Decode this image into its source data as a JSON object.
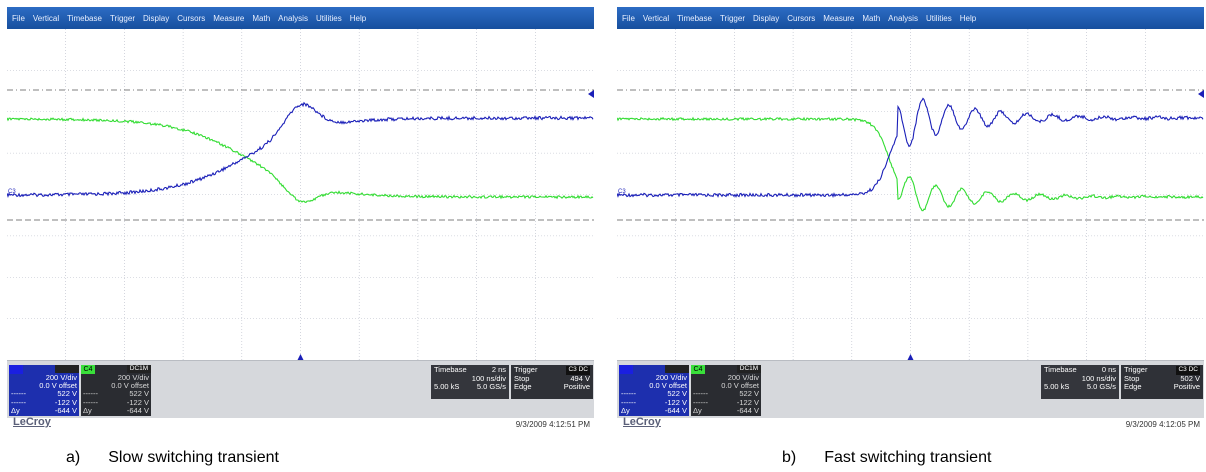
{
  "menu": [
    "File",
    "Vertical",
    "Timebase",
    "Trigger",
    "Display",
    "Cursors",
    "Measure",
    "Math",
    "Analysis",
    "Utilities",
    "Help"
  ],
  "colors": {
    "c3_trace": "#1a1fb8",
    "c4_trace": "#32dc32"
  },
  "panels": [
    {
      "id": "slow",
      "channels": {
        "c3": {
          "id": "",
          "coupling": "",
          "vdiv": "200 V/div",
          "offset": "0.0 V offset",
          "r1": "522 V",
          "r2": "-122 V",
          "dy_label": "Δy",
          "dy": "-644 V"
        },
        "c4": {
          "id": "C4",
          "coupling": "DC1M",
          "vdiv": "200 V/div",
          "offset": "0.0 V offset",
          "r1": "522 V",
          "r2": "-122 V",
          "dy_label": "Δy",
          "dy": "-644 V"
        }
      },
      "timebase": {
        "label": "Timebase",
        "delay": "2 ns",
        "div": "100 ns/div",
        "samples": "5.00 kS",
        "rate": "5.0 GS/s"
      },
      "trigger": {
        "label": "Trigger",
        "tag": "C3 DC",
        "mode": "Stop",
        "level": "494 V",
        "type": "Edge",
        "slope": "Positive"
      },
      "brand": "LeCroy",
      "timestamp": "9/3/2009 4:12:51 PM",
      "caption_label": "a)",
      "caption_text": "Slow switching transient",
      "ground_marker": "C3"
    },
    {
      "id": "fast",
      "channels": {
        "c3": {
          "id": "",
          "coupling": "",
          "vdiv": "200 V/div",
          "offset": "0.0 V offset",
          "r1": "522 V",
          "r2": "-122 V",
          "dy_label": "Δy",
          "dy": "-644 V"
        },
        "c4": {
          "id": "C4",
          "coupling": "DC1M",
          "vdiv": "200 V/div",
          "offset": "0.0 V offset",
          "r1": "522 V",
          "r2": "-122 V",
          "dy_label": "Δy",
          "dy": "-644 V"
        }
      },
      "timebase": {
        "label": "Timebase",
        "delay": "0 ns",
        "div": "100 ns/div",
        "samples": "5.00 kS",
        "rate": "5.0 GS/s"
      },
      "trigger": {
        "label": "Trigger",
        "tag": "C3 DC",
        "mode": "Stop",
        "level": "502 V",
        "type": "Edge",
        "slope": "Positive"
      },
      "brand": "LeCroy",
      "timestamp": "9/3/2009 4:12:05 PM",
      "caption_label": "b)",
      "caption_text": "Fast switching transient",
      "ground_marker": "C3"
    }
  ]
}
